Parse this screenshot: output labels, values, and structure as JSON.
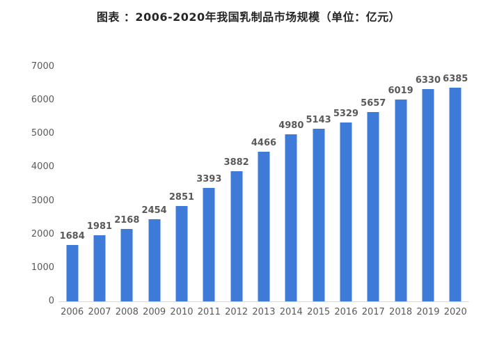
{
  "chart_data": {
    "type": "bar",
    "title": "图表 ：2006-2020年我国乳制品市场规模（单位：亿元）",
    "categories": [
      "2006",
      "2007",
      "2008",
      "2009",
      "2010",
      "2011",
      "2012",
      "2013",
      "2014",
      "2015",
      "2016",
      "2017",
      "2018",
      "2019",
      "2020"
    ],
    "values": [
      1684,
      1981,
      2168,
      2454,
      2851,
      3393,
      3882,
      4466,
      4980,
      5143,
      5329,
      5657,
      6019,
      6330,
      6385
    ],
    "xlabel": "",
    "ylabel": "",
    "ylim": [
      0,
      7000
    ],
    "ytick_step": 1000,
    "ytick_labels": [
      "0",
      "1000",
      "2000",
      "3000",
      "4000",
      "5000",
      "6000",
      "7000"
    ],
    "grid": false,
    "legend_position": "none",
    "bar_color": "#3E7BD8",
    "data_label_color": "#595959",
    "tick_label_color": "#595959",
    "axis_line_color": "#D9D9D9",
    "title_color": "#262626",
    "background_color": "#FFFFFF"
  }
}
